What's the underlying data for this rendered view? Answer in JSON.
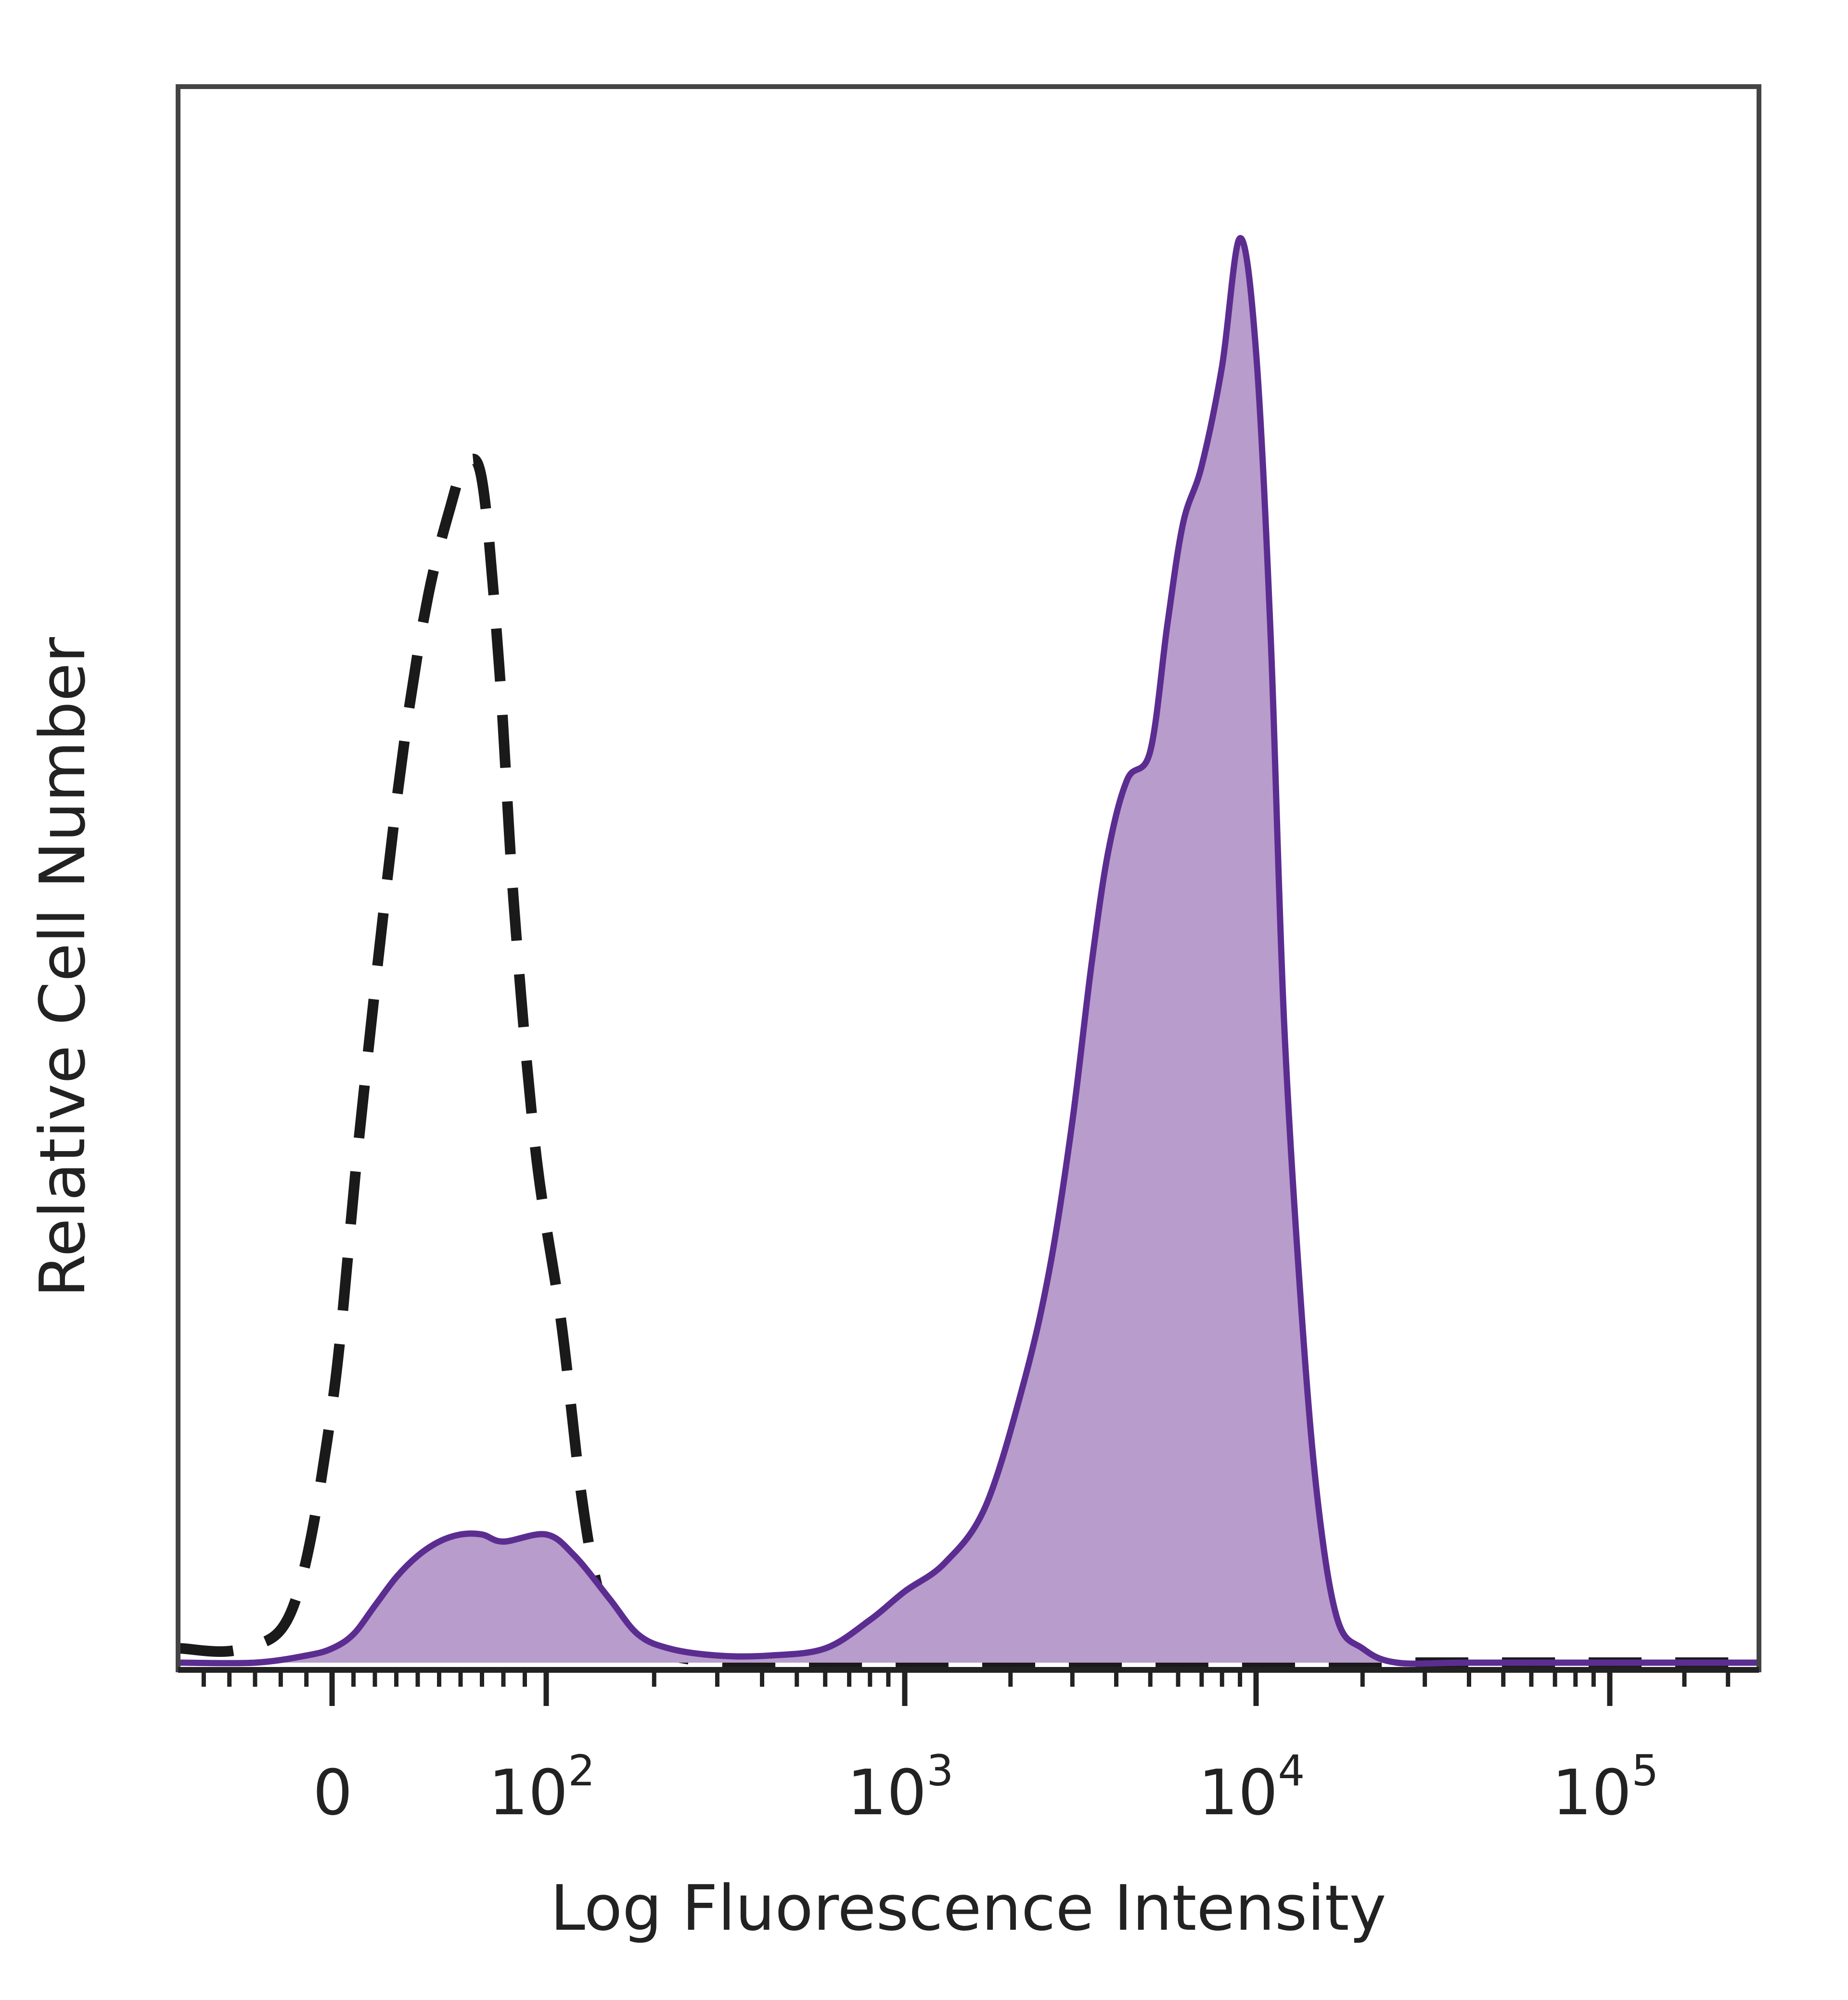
{
  "chart_data": {
    "type": "area",
    "xlabel": "Log Fluorescence Intensity",
    "ylabel": "Relative Cell Number",
    "x_scale": "biexponential",
    "xlim": [
      -60,
      400000
    ],
    "ylim": [
      0,
      1
    ],
    "grid": false,
    "x_ticks": [
      {
        "value": 0,
        "base": "0",
        "exp": ""
      },
      {
        "value": 100,
        "base": "10",
        "exp": "2"
      },
      {
        "value": 1000,
        "base": "10",
        "exp": "3"
      },
      {
        "value": 10000,
        "base": "10",
        "exp": "4"
      },
      {
        "value": 100000,
        "base": "10",
        "exp": "5"
      }
    ],
    "series": [
      {
        "style": "dashed",
        "color": "#1a1a1a",
        "fill": "none",
        "x": [
          -60,
          -35,
          -15,
          0,
          12,
          25,
          35,
          45,
          55,
          62,
          70,
          78,
          85,
          95,
          110,
          125,
          140,
          160,
          185,
          220,
          300,
          450,
          700,
          1000,
          2000,
          5000,
          10000,
          30000,
          100000,
          400000
        ],
        "y": [
          0.01,
          0.01,
          0.04,
          0.18,
          0.36,
          0.54,
          0.66,
          0.75,
          0.81,
          0.84,
          0.83,
          0.7,
          0.53,
          0.36,
          0.24,
          0.12,
          0.05,
          0.02,
          0.01,
          0.005,
          0.0,
          0.0,
          0.0,
          0.0,
          0.0,
          0.0,
          0.0,
          0.0,
          0.0,
          0.0
        ]
      },
      {
        "style": "filled",
        "color": "#5b2d91",
        "fill": "#b89ccb",
        "x": [
          -60,
          -30,
          -10,
          0,
          10,
          20,
          30,
          40,
          50,
          60,
          70,
          80,
          100,
          120,
          150,
          180,
          220,
          300,
          420,
          600,
          800,
          1000,
          1300,
          1700,
          2200,
          2600,
          3000,
          3400,
          3800,
          4300,
          5000,
          5600,
          6200,
          7000,
          8000,
          9000,
          10000,
          11000,
          12000,
          13500,
          15000,
          17000,
          20000,
          25000,
          40000,
          100000,
          400000
        ],
        "y": [
          0.0,
          0.0,
          0.005,
          0.01,
          0.02,
          0.04,
          0.06,
          0.075,
          0.085,
          0.09,
          0.09,
          0.085,
          0.09,
          0.075,
          0.045,
          0.02,
          0.01,
          0.005,
          0.005,
          0.01,
          0.03,
          0.05,
          0.07,
          0.11,
          0.2,
          0.28,
          0.38,
          0.49,
          0.57,
          0.62,
          0.64,
          0.73,
          0.8,
          0.84,
          0.91,
          1.0,
          0.92,
          0.72,
          0.45,
          0.24,
          0.11,
          0.03,
          0.01,
          0.0,
          0.0,
          0.0,
          0.0
        ]
      }
    ]
  }
}
